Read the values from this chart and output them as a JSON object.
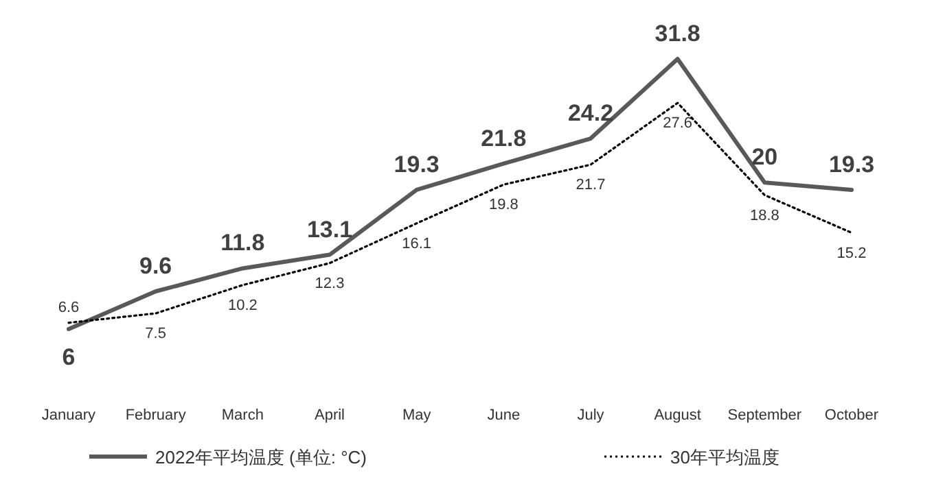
{
  "chart_data": {
    "type": "line",
    "categories": [
      "January",
      "February",
      "March",
      "April",
      "May",
      "June",
      "July",
      "August",
      "September",
      "October"
    ],
    "series": [
      {
        "name": "2022年平均温度 (单位: °C)",
        "color": "#595959",
        "line_style": "solid",
        "values": [
          6,
          9.6,
          11.8,
          13.1,
          19.3,
          21.8,
          24.2,
          31.8,
          20,
          19.3
        ]
      },
      {
        "name": "30年平均温度",
        "color": "#000000",
        "line_style": "dotted",
        "values": [
          6.6,
          7.5,
          10.2,
          12.3,
          16.1,
          19.8,
          21.7,
          27.6,
          18.8,
          15.2
        ]
      }
    ],
    "data_labels": true,
    "legend": "bottom",
    "marker": "none"
  }
}
